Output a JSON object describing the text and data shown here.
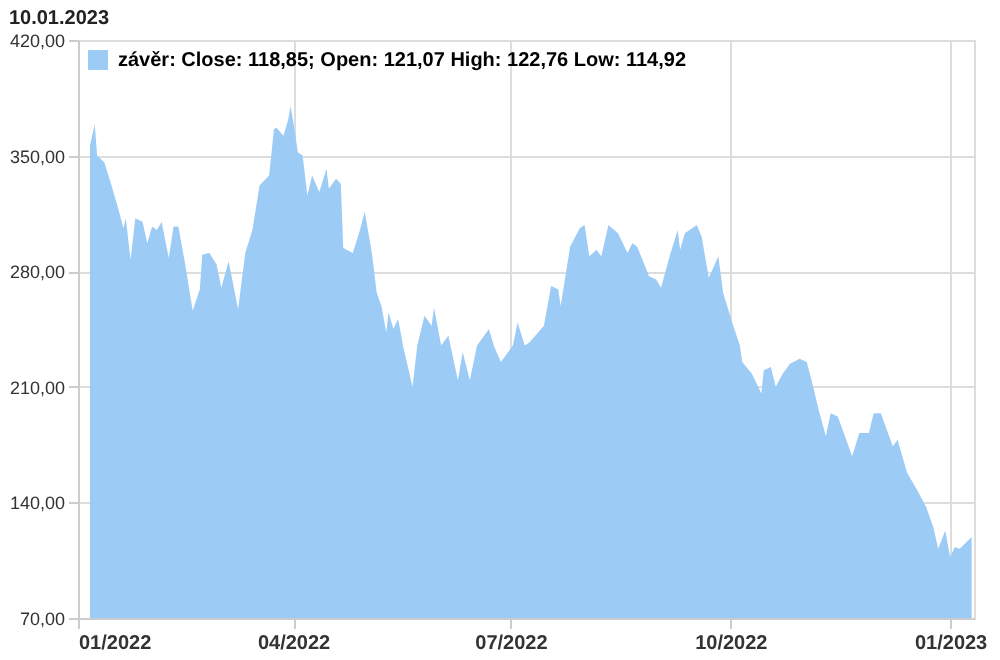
{
  "chart_data": {
    "type": "area",
    "annotations": [
      "10.01.2023"
    ],
    "legend": "top left",
    "grid": true,
    "xlim": [
      "2022-01-01",
      "2023-01-11"
    ],
    "xticks": [
      {
        "value": "2022-01-01",
        "label": "01/2022"
      },
      {
        "value": "2022-04-01",
        "label": "04/2022"
      },
      {
        "value": "2022-07-01",
        "label": "07/2022"
      },
      {
        "value": "2022-10-01",
        "label": "10/2022"
      },
      {
        "value": "2023-01-01",
        "label": "01/2023"
      }
    ],
    "ylim": [
      70,
      420
    ],
    "yticks": [
      {
        "value": 70,
        "label": "70,00"
      },
      {
        "value": 140,
        "label": "140,00"
      },
      {
        "value": 210,
        "label": "210,00"
      },
      {
        "value": 280,
        "label": "280,00"
      },
      {
        "value": 350,
        "label": "350,00"
      },
      {
        "value": 420,
        "label": "420,00"
      }
    ],
    "x": [
      "2022-01-06",
      "2022-01-08",
      "2022-01-09",
      "2022-01-12",
      "2022-01-15",
      "2022-01-18",
      "2022-01-20",
      "2022-01-21",
      "2022-01-23",
      "2022-01-25",
      "2022-01-28",
      "2022-01-30",
      "2022-02-01",
      "2022-02-03",
      "2022-02-05",
      "2022-02-08",
      "2022-02-10",
      "2022-02-12",
      "2022-02-15",
      "2022-02-18",
      "2022-02-21",
      "2022-02-22",
      "2022-02-25",
      "2022-02-28",
      "2022-03-02",
      "2022-03-05",
      "2022-03-06",
      "2022-03-09",
      "2022-03-12",
      "2022-03-15",
      "2022-03-18",
      "2022-03-22",
      "2022-03-24",
      "2022-03-25",
      "2022-03-28",
      "2022-03-30",
      "2022-03-31",
      "2022-04-02",
      "2022-04-03",
      "2022-04-05",
      "2022-04-07",
      "2022-04-09",
      "2022-04-12",
      "2022-04-15",
      "2022-04-16",
      "2022-04-19",
      "2022-04-21",
      "2022-04-22",
      "2022-04-26",
      "2022-04-29",
      "2022-05-01",
      "2022-05-04",
      "2022-05-06",
      "2022-05-08",
      "2022-05-10",
      "2022-05-11",
      "2022-05-13",
      "2022-05-15",
      "2022-05-17",
      "2022-05-21",
      "2022-05-23",
      "2022-05-26",
      "2022-05-29",
      "2022-05-30",
      "2022-06-02",
      "2022-06-05",
      "2022-06-09",
      "2022-06-11",
      "2022-06-14",
      "2022-06-17",
      "2022-06-22",
      "2022-06-24",
      "2022-06-27",
      "2022-07-02",
      "2022-07-04",
      "2022-07-07",
      "2022-07-09",
      "2022-07-15",
      "2022-07-18",
      "2022-07-21",
      "2022-07-22",
      "2022-07-26",
      "2022-07-30",
      "2022-08-01",
      "2022-08-03",
      "2022-08-06",
      "2022-08-08",
      "2022-08-11",
      "2022-08-15",
      "2022-08-19",
      "2022-08-21",
      "2022-08-23",
      "2022-08-28",
      "2022-08-31",
      "2022-09-02",
      "2022-09-06",
      "2022-09-09",
      "2022-09-10",
      "2022-09-12",
      "2022-09-17",
      "2022-09-19",
      "2022-09-22",
      "2022-09-26",
      "2022-09-28",
      "2022-10-02",
      "2022-10-05",
      "2022-10-06",
      "2022-10-10",
      "2022-10-14",
      "2022-10-15",
      "2022-10-18",
      "2022-10-20",
      "2022-10-23",
      "2022-10-26",
      "2022-10-30",
      "2022-11-02",
      "2022-11-04",
      "2022-11-07",
      "2022-11-10",
      "2022-11-12",
      "2022-11-15",
      "2022-11-17",
      "2022-11-21",
      "2022-11-24",
      "2022-11-28",
      "2022-11-30",
      "2022-12-03",
      "2022-12-06",
      "2022-12-08",
      "2022-12-10",
      "2022-12-14",
      "2022-12-18",
      "2022-12-22",
      "2022-12-25",
      "2022-12-27",
      "2022-12-30",
      "2023-01-01",
      "2023-01-03",
      "2023-01-05",
      "2023-01-10"
    ],
    "series": [
      {
        "name": "závěr: Close: 118,85; Open: 121,07 High: 122,76 Low: 114,92",
        "color": "#9ccbf6",
        "values": [
          356,
          369,
          350,
          346,
          332,
          317,
          306,
          312,
          287,
          312,
          310,
          297,
          307,
          305,
          310,
          288,
          307,
          307,
          283,
          256,
          269,
          290,
          291,
          284,
          270,
          286,
          279,
          257,
          291,
          305,
          332,
          338,
          366,
          367,
          362,
          372,
          380,
          362,
          352,
          350,
          326,
          338,
          328,
          342,
          330,
          336,
          333,
          294,
          291,
          305,
          316,
          291,
          267,
          259,
          243,
          255,
          245,
          251,
          235,
          210,
          235,
          253,
          247,
          258,
          235,
          241,
          214,
          231,
          214,
          235,
          245,
          235,
          225,
          235,
          249,
          235,
          237,
          247,
          271,
          269,
          259,
          295,
          306,
          308,
          289,
          293,
          289,
          308,
          303,
          291,
          297,
          295,
          277,
          275,
          270,
          291,
          305,
          293,
          303,
          308,
          301,
          276,
          289,
          267,
          248,
          235,
          225,
          218,
          206,
          220,
          222,
          210,
          218,
          224,
          227,
          225,
          214,
          196,
          180,
          194,
          192,
          184,
          168,
          182,
          182,
          194,
          194,
          182,
          174,
          178,
          158,
          148,
          137,
          125,
          112,
          123,
          107,
          113,
          112,
          119
        ]
      }
    ]
  }
}
